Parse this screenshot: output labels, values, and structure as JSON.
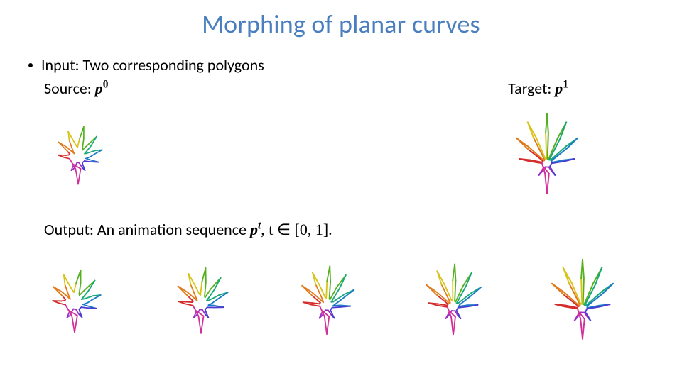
{
  "title": {
    "text": "Morphing of planar curves",
    "color": "#4a7fbf",
    "fontsize": 36
  },
  "body_fontsize": 22,
  "colors": {
    "text": "#000000",
    "background": "#ffffff"
  },
  "input_label": "Input: Two corresponding polygons",
  "source_label": "Source: ",
  "source_symbol": "p",
  "source_sup": "0",
  "target_label": "Target: ",
  "target_symbol": "p",
  "target_sup": "1",
  "output_label_pre": "Output:  An animation sequence ",
  "output_symbol": "p",
  "output_sup": "t",
  "output_label_post": ", t ∈ [0, 1].",
  "leaf_palette": {
    "c0": "#d42c2c",
    "c1": "#e07a1a",
    "c2": "#d8c31a",
    "c3": "#55b01e",
    "c4": "#17a87a",
    "c5": "#1a7ac7",
    "c6": "#4a3bd1",
    "c7": "#9a2fc7",
    "c8": "#d12f9a",
    "stroke_width": 1.4
  },
  "leaf_layout": {
    "input_leaf_size": 120,
    "sequence_leaf_size": 120,
    "sequence_count": 5
  }
}
